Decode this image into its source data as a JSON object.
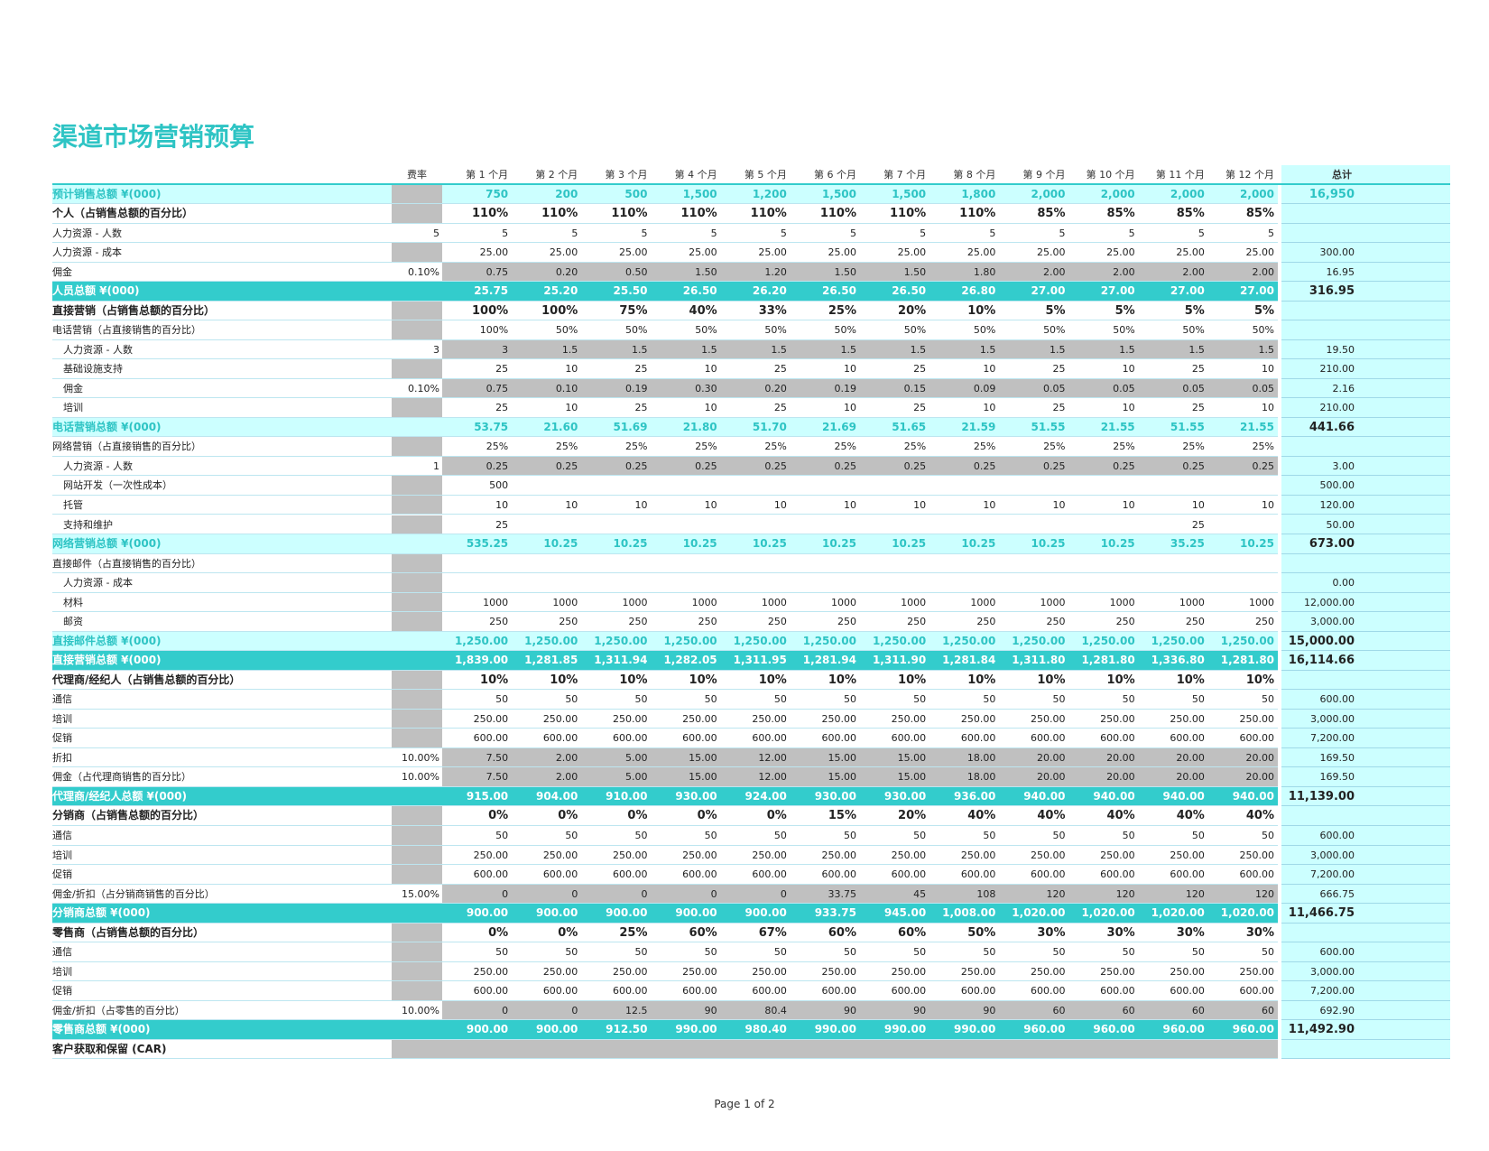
{
  "header": {
    "title": "渠道市场营销预算"
  },
  "table": {
    "columns": {
      "rate": "费率",
      "months": [
        "第 1 个月",
        "第 2 个月",
        "第 3 个月",
        "第 4 个月",
        "第 5 个月",
        "第 6 个月",
        "第 7 个月",
        "第 8 个月",
        "第 9 个月",
        "第 10 个月",
        "第 11 个月",
        "第 12 个月"
      ],
      "total": "总计"
    },
    "rows": [
      {
        "label": "预计销售总额 ¥(000)",
        "style": "light",
        "values": [
          "750",
          "200",
          "500",
          "1,500",
          "1,200",
          "1,500",
          "1,500",
          "1,800",
          "2,000",
          "2,000",
          "2,000",
          "2,000"
        ],
        "total": "16,950"
      },
      {
        "label": "个人（占销售总额的百分比）",
        "style": "section",
        "values": [
          "110%",
          "110%",
          "110%",
          "110%",
          "110%",
          "110%",
          "110%",
          "110%",
          "85%",
          "85%",
          "85%",
          "85%"
        ]
      },
      {
        "label": "人力资源 - 人数",
        "style": "normal",
        "rate": "5",
        "values": [
          "5",
          "5",
          "5",
          "5",
          "5",
          "5",
          "5",
          "5",
          "5",
          "5",
          "5",
          "5"
        ]
      },
      {
        "label": "人力资源 - 成本",
        "style": "normal",
        "values": [
          "25.00",
          "25.00",
          "25.00",
          "25.00",
          "25.00",
          "25.00",
          "25.00",
          "25.00",
          "25.00",
          "25.00",
          "25.00",
          "25.00"
        ],
        "total": "300.00"
      },
      {
        "label": "佣金",
        "style": "normal",
        "shade": true,
        "rate": "0.10%",
        "values": [
          "0.75",
          "0.20",
          "0.50",
          "1.50",
          "1.20",
          "1.50",
          "1.50",
          "1.80",
          "2.00",
          "2.00",
          "2.00",
          "2.00"
        ],
        "total": "16.95"
      },
      {
        "label": "人员总额 ¥(000)",
        "style": "teal",
        "values": [
          "25.75",
          "25.20",
          "25.50",
          "26.50",
          "26.20",
          "26.50",
          "26.50",
          "26.80",
          "27.00",
          "27.00",
          "27.00",
          "27.00"
        ],
        "total": "316.95"
      },
      {
        "label": "直接营销（占销售总额的百分比）",
        "style": "section",
        "values": [
          "100%",
          "100%",
          "75%",
          "40%",
          "33%",
          "25%",
          "20%",
          "10%",
          "5%",
          "5%",
          "5%",
          "5%"
        ]
      },
      {
        "label": "电话营销（占直接销售的百分比）",
        "style": "normal",
        "values": [
          "100%",
          "50%",
          "50%",
          "50%",
          "50%",
          "50%",
          "50%",
          "50%",
          "50%",
          "50%",
          "50%",
          "50%"
        ]
      },
      {
        "label": "人力资源 - 人数",
        "style": "normal",
        "indent": true,
        "shade": true,
        "rate": "3",
        "values": [
          "3",
          "1.5",
          "1.5",
          "1.5",
          "1.5",
          "1.5",
          "1.5",
          "1.5",
          "1.5",
          "1.5",
          "1.5",
          "1.5"
        ],
        "total": "19.50"
      },
      {
        "label": "基础设施支持",
        "style": "normal",
        "indent": true,
        "values": [
          "25",
          "10",
          "25",
          "10",
          "25",
          "10",
          "25",
          "10",
          "25",
          "10",
          "25",
          "10"
        ],
        "total": "210.00"
      },
      {
        "label": "佣金",
        "style": "normal",
        "indent": true,
        "shade": true,
        "rate": "0.10%",
        "values": [
          "0.75",
          "0.10",
          "0.19",
          "0.30",
          "0.20",
          "0.19",
          "0.15",
          "0.09",
          "0.05",
          "0.05",
          "0.05",
          "0.05"
        ],
        "total": "2.16"
      },
      {
        "label": "培训",
        "style": "normal",
        "indent": true,
        "values": [
          "25",
          "10",
          "25",
          "10",
          "25",
          "10",
          "25",
          "10",
          "25",
          "10",
          "25",
          "10"
        ],
        "total": "210.00"
      },
      {
        "label": "电话营销总额 ¥(000)",
        "style": "light",
        "values": [
          "53.75",
          "21.60",
          "51.69",
          "21.80",
          "51.70",
          "21.69",
          "51.65",
          "21.59",
          "51.55",
          "21.55",
          "51.55",
          "21.55"
        ],
        "total": "441.66"
      },
      {
        "label": "网络营销（占直接销售的百分比）",
        "style": "normal",
        "values": [
          "25%",
          "25%",
          "25%",
          "25%",
          "25%",
          "25%",
          "25%",
          "25%",
          "25%",
          "25%",
          "25%",
          "25%"
        ]
      },
      {
        "label": "人力资源 - 人数",
        "style": "normal",
        "indent": true,
        "shade": true,
        "rate": "1",
        "values": [
          "0.25",
          "0.25",
          "0.25",
          "0.25",
          "0.25",
          "0.25",
          "0.25",
          "0.25",
          "0.25",
          "0.25",
          "0.25",
          "0.25"
        ],
        "total": "3.00"
      },
      {
        "label": "网站开发（一次性成本）",
        "style": "normal",
        "indent": true,
        "values": [
          "500",
          null,
          null,
          null,
          null,
          null,
          null,
          null,
          null,
          null,
          null,
          null
        ],
        "total": "500.00"
      },
      {
        "label": "托管",
        "style": "normal",
        "indent": true,
        "values": [
          "10",
          "10",
          "10",
          "10",
          "10",
          "10",
          "10",
          "10",
          "10",
          "10",
          "10",
          "10"
        ],
        "total": "120.00"
      },
      {
        "label": "支持和维护",
        "style": "normal",
        "indent": true,
        "values": [
          "25",
          null,
          null,
          null,
          null,
          null,
          null,
          null,
          null,
          null,
          "25",
          null
        ],
        "total": "50.00"
      },
      {
        "label": "网络营销总额 ¥(000)",
        "style": "light",
        "values": [
          "535.25",
          "10.25",
          "10.25",
          "10.25",
          "10.25",
          "10.25",
          "10.25",
          "10.25",
          "10.25",
          "10.25",
          "35.25",
          "10.25"
        ],
        "total": "673.00"
      },
      {
        "label": "直接邮件（占直接销售的百分比）",
        "style": "normal",
        "values": [
          null,
          null,
          null,
          null,
          null,
          null,
          null,
          null,
          null,
          null,
          null,
          null
        ]
      },
      {
        "label": "人力资源 - 成本",
        "style": "normal",
        "indent": true,
        "values": [
          null,
          null,
          null,
          null,
          null,
          null,
          null,
          null,
          null,
          null,
          null,
          null
        ],
        "total": "0.00"
      },
      {
        "label": "材料",
        "style": "normal",
        "indent": true,
        "values": [
          "1000",
          "1000",
          "1000",
          "1000",
          "1000",
          "1000",
          "1000",
          "1000",
          "1000",
          "1000",
          "1000",
          "1000"
        ],
        "total": "12,000.00"
      },
      {
        "label": "邮资",
        "style": "normal",
        "indent": true,
        "values": [
          "250",
          "250",
          "250",
          "250",
          "250",
          "250",
          "250",
          "250",
          "250",
          "250",
          "250",
          "250"
        ],
        "total": "3,000.00"
      },
      {
        "label": "直接邮件总额 ¥(000)",
        "style": "light",
        "values": [
          "1,250.00",
          "1,250.00",
          "1,250.00",
          "1,250.00",
          "1,250.00",
          "1,250.00",
          "1,250.00",
          "1,250.00",
          "1,250.00",
          "1,250.00",
          "1,250.00",
          "1,250.00"
        ],
        "total": "15,000.00"
      },
      {
        "label": "直接营销总额 ¥(000)",
        "style": "teal",
        "values": [
          "1,839.00",
          "1,281.85",
          "1,311.94",
          "1,282.05",
          "1,311.95",
          "1,281.94",
          "1,311.90",
          "1,281.84",
          "1,311.80",
          "1,281.80",
          "1,336.80",
          "1,281.80"
        ],
        "total": "16,114.66"
      },
      {
        "label": "代理商/经纪人（占销售总额的百分比）",
        "style": "section",
        "values": [
          "10%",
          "10%",
          "10%",
          "10%",
          "10%",
          "10%",
          "10%",
          "10%",
          "10%",
          "10%",
          "10%",
          "10%"
        ]
      },
      {
        "label": "通信",
        "style": "normal",
        "values": [
          "50",
          "50",
          "50",
          "50",
          "50",
          "50",
          "50",
          "50",
          "50",
          "50",
          "50",
          "50"
        ],
        "total": "600.00"
      },
      {
        "label": "培训",
        "style": "normal",
        "values": [
          "250.00",
          "250.00",
          "250.00",
          "250.00",
          "250.00",
          "250.00",
          "250.00",
          "250.00",
          "250.00",
          "250.00",
          "250.00",
          "250.00"
        ],
        "total": "3,000.00"
      },
      {
        "label": "促销",
        "style": "normal",
        "values": [
          "600.00",
          "600.00",
          "600.00",
          "600.00",
          "600.00",
          "600.00",
          "600.00",
          "600.00",
          "600.00",
          "600.00",
          "600.00",
          "600.00"
        ],
        "total": "7,200.00"
      },
      {
        "label": "折扣",
        "style": "normal",
        "shade": true,
        "rate": "10.00%",
        "values": [
          "7.50",
          "2.00",
          "5.00",
          "15.00",
          "12.00",
          "15.00",
          "15.00",
          "18.00",
          "20.00",
          "20.00",
          "20.00",
          "20.00"
        ],
        "total": "169.50"
      },
      {
        "label": "佣金（占代理商销售的百分比）",
        "style": "normal",
        "shade": true,
        "rate": "10.00%",
        "values": [
          "7.50",
          "2.00",
          "5.00",
          "15.00",
          "12.00",
          "15.00",
          "15.00",
          "18.00",
          "20.00",
          "20.00",
          "20.00",
          "20.00"
        ],
        "total": "169.50"
      },
      {
        "label": "代理商/经纪人总额 ¥(000)",
        "style": "teal",
        "values": [
          "915.00",
          "904.00",
          "910.00",
          "930.00",
          "924.00",
          "930.00",
          "930.00",
          "936.00",
          "940.00",
          "940.00",
          "940.00",
          "940.00"
        ],
        "total": "11,139.00"
      },
      {
        "label": "分销商（占销售总额的百分比）",
        "style": "section",
        "values": [
          "0%",
          "0%",
          "0%",
          "0%",
          "0%",
          "15%",
          "20%",
          "40%",
          "40%",
          "40%",
          "40%",
          "40%"
        ]
      },
      {
        "label": "通信",
        "style": "normal",
        "values": [
          "50",
          "50",
          "50",
          "50",
          "50",
          "50",
          "50",
          "50",
          "50",
          "50",
          "50",
          "50"
        ],
        "total": "600.00"
      },
      {
        "label": "培训",
        "style": "normal",
        "values": [
          "250.00",
          "250.00",
          "250.00",
          "250.00",
          "250.00",
          "250.00",
          "250.00",
          "250.00",
          "250.00",
          "250.00",
          "250.00",
          "250.00"
        ],
        "total": "3,000.00"
      },
      {
        "label": "促销",
        "style": "normal",
        "values": [
          "600.00",
          "600.00",
          "600.00",
          "600.00",
          "600.00",
          "600.00",
          "600.00",
          "600.00",
          "600.00",
          "600.00",
          "600.00",
          "600.00"
        ],
        "total": "7,200.00"
      },
      {
        "label": "佣金/折扣（占分销商销售的百分比）",
        "style": "normal",
        "shade": true,
        "rate": "15.00%",
        "values": [
          "0",
          "0",
          "0",
          "0",
          "0",
          "33.75",
          "45",
          "108",
          "120",
          "120",
          "120",
          "120"
        ],
        "total": "666.75"
      },
      {
        "label": "分销商总额 ¥(000)",
        "style": "teal",
        "values": [
          "900.00",
          "900.00",
          "900.00",
          "900.00",
          "900.00",
          "933.75",
          "945.00",
          "1,008.00",
          "1,020.00",
          "1,020.00",
          "1,020.00",
          "1,020.00"
        ],
        "total": "11,466.75"
      },
      {
        "label": "零售商（占销售总额的百分比）",
        "style": "section",
        "values": [
          "0%",
          "0%",
          "25%",
          "60%",
          "67%",
          "60%",
          "60%",
          "50%",
          "30%",
          "30%",
          "30%",
          "30%"
        ]
      },
      {
        "label": "通信",
        "style": "normal",
        "values": [
          "50",
          "50",
          "50",
          "50",
          "50",
          "50",
          "50",
          "50",
          "50",
          "50",
          "50",
          "50"
        ],
        "total": "600.00"
      },
      {
        "label": "培训",
        "style": "normal",
        "values": [
          "250.00",
          "250.00",
          "250.00",
          "250.00",
          "250.00",
          "250.00",
          "250.00",
          "250.00",
          "250.00",
          "250.00",
          "250.00",
          "250.00"
        ],
        "total": "3,000.00"
      },
      {
        "label": "促销",
        "style": "normal",
        "values": [
          "600.00",
          "600.00",
          "600.00",
          "600.00",
          "600.00",
          "600.00",
          "600.00",
          "600.00",
          "600.00",
          "600.00",
          "600.00",
          "600.00"
        ],
        "total": "7,200.00"
      },
      {
        "label": "佣金/折扣（占零售的百分比）",
        "style": "normal",
        "shade": true,
        "rate": "10.00%",
        "values": [
          "0",
          "0",
          "12.5",
          "90",
          "80.4",
          "90",
          "90",
          "90",
          "60",
          "60",
          "60",
          "60"
        ],
        "total": "692.90"
      },
      {
        "label": "零售商总额 ¥(000)",
        "style": "teal",
        "values": [
          "900.00",
          "900.00",
          "912.50",
          "990.00",
          "980.40",
          "990.00",
          "990.00",
          "990.00",
          "960.00",
          "960.00",
          "960.00",
          "960.00"
        ],
        "total": "11,492.90"
      },
      {
        "label": "客户获取和保留 (CAR)",
        "style": "section",
        "shade": true,
        "values": [
          null,
          null,
          null,
          null,
          null,
          null,
          null,
          null,
          null,
          null,
          null,
          null
        ]
      }
    ]
  },
  "footer": {
    "page": "Page 1 of 2"
  }
}
